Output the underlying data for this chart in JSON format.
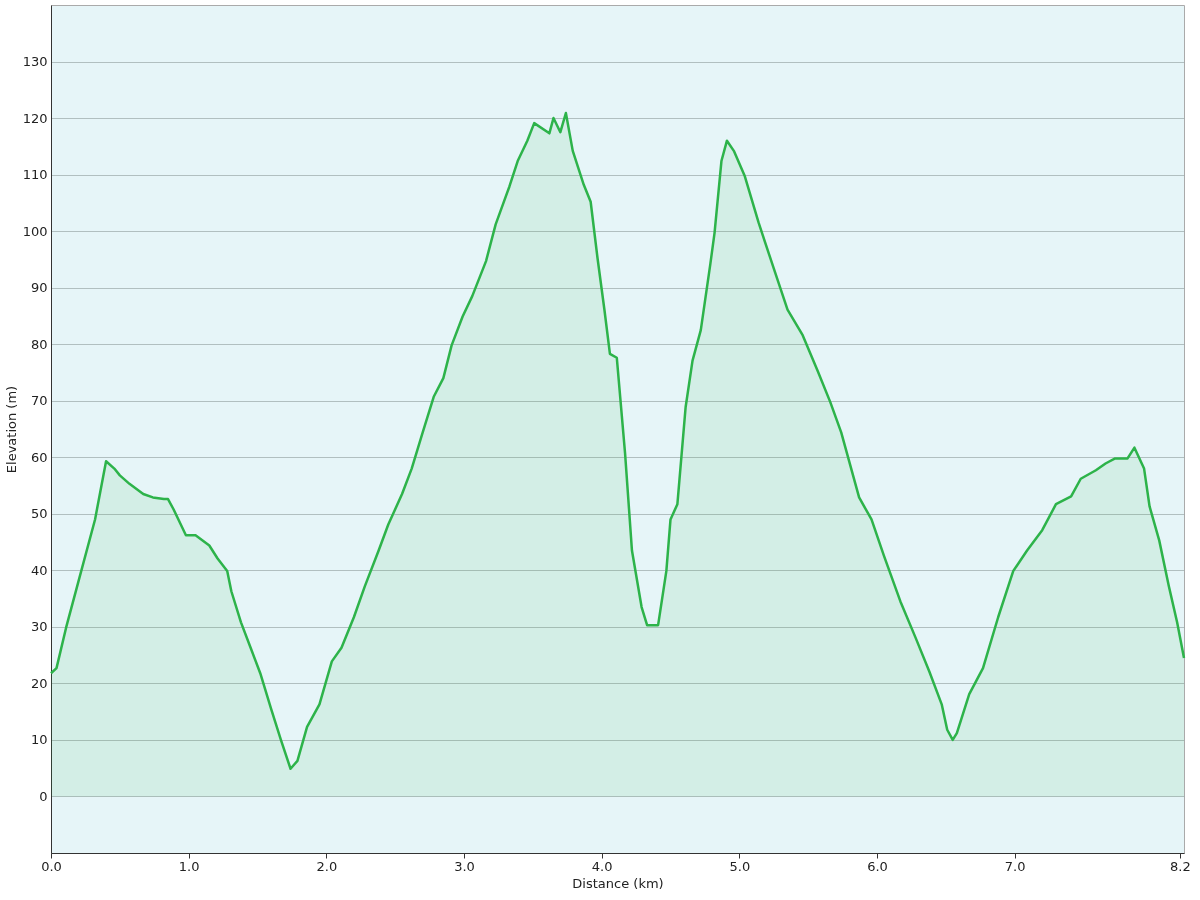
{
  "chart_data": {
    "type": "area",
    "xlabel": "Distance  (km)",
    "ylabel": "Elevation (m)",
    "xlim": [
      0,
      8.23
    ],
    "ylim": [
      -10,
      140
    ],
    "xticks": [
      {
        "value": 0,
        "label": "0.0"
      },
      {
        "value": 1,
        "label": "1.0"
      },
      {
        "value": 2,
        "label": "2.0"
      },
      {
        "value": 3,
        "label": "3.0"
      },
      {
        "value": 4,
        "label": "4.0"
      },
      {
        "value": 5,
        "label": "5.0"
      },
      {
        "value": 6,
        "label": "6.0"
      },
      {
        "value": 7,
        "label": "7.0"
      },
      {
        "value": 8.2,
        "label": "8.2"
      }
    ],
    "yticks": [
      0,
      10,
      20,
      30,
      40,
      50,
      60,
      70,
      80,
      90,
      100,
      110,
      120,
      130
    ],
    "grid": "y",
    "series": [
      {
        "color": "#2db34a",
        "x": [
          0.0,
          0.04,
          0.11,
          0.2,
          0.32,
          0.4,
          0.46,
          0.5,
          0.57,
          0.67,
          0.74,
          0.82,
          0.85,
          0.89,
          0.98,
          1.05,
          1.15,
          1.21,
          1.28,
          1.31,
          1.38,
          1.45,
          1.52,
          1.6,
          1.67,
          1.74,
          1.79,
          1.86,
          1.95,
          2.04,
          2.11,
          2.2,
          2.28,
          2.38,
          2.45,
          2.55,
          2.62,
          2.7,
          2.78,
          2.85,
          2.91,
          2.99,
          3.06,
          3.16,
          3.23,
          3.33,
          3.39,
          3.46,
          3.51,
          3.62,
          3.65,
          3.7,
          3.74,
          3.79,
          3.87,
          3.92,
          3.97,
          4.02,
          4.06,
          4.11,
          4.17,
          4.22,
          4.29,
          4.33,
          4.41,
          4.47,
          4.5,
          4.55,
          4.61,
          4.66,
          4.72,
          4.79,
          4.82,
          4.87,
          4.91,
          4.96,
          5.04,
          5.14,
          5.25,
          5.35,
          5.46,
          5.57,
          5.66,
          5.74,
          5.87,
          5.96,
          6.05,
          6.17,
          6.28,
          6.38,
          6.47,
          6.51,
          6.55,
          6.58,
          6.67,
          6.77,
          6.88,
          6.99,
          7.09,
          7.2,
          7.3,
          7.41,
          7.48,
          7.59,
          7.66,
          7.73,
          7.82,
          7.87,
          7.94,
          7.98,
          8.05,
          8.12,
          8.18,
          8.23
        ],
        "values": [
          21.8,
          22.7,
          29.9,
          38.1,
          49.0,
          59.3,
          58.0,
          56.8,
          55.3,
          53.5,
          52.9,
          52.6,
          52.6,
          50.8,
          46.2,
          46.2,
          44.4,
          42.1,
          39.9,
          36.3,
          30.8,
          26.3,
          21.8,
          15.4,
          10.0,
          4.9,
          6.3,
          12.3,
          16.3,
          23.9,
          26.3,
          31.7,
          37.2,
          43.5,
          48.1,
          53.5,
          58.0,
          64.4,
          70.7,
          74.0,
          79.8,
          84.9,
          88.5,
          94.7,
          101.2,
          107.9,
          112.4,
          116.0,
          119.1,
          117.3,
          120.0,
          117.5,
          120.9,
          114.2,
          108.2,
          105.2,
          95.2,
          86.1,
          78.3,
          77.6,
          60.7,
          43.5,
          33.5,
          30.3,
          30.3,
          39.9,
          49.0,
          51.7,
          68.9,
          77.1,
          82.5,
          94.3,
          99.7,
          112.4,
          116.0,
          114.2,
          109.7,
          101.5,
          93.4,
          86.1,
          81.6,
          75.2,
          69.8,
          64.4,
          52.9,
          49.0,
          42.6,
          34.5,
          28.1,
          22.1,
          16.3,
          11.8,
          10.0,
          11.2,
          18.1,
          22.7,
          31.7,
          39.9,
          43.5,
          47.1,
          51.7,
          53.1,
          56.2,
          57.7,
          58.9,
          59.8,
          59.8,
          61.7,
          58.0,
          51.3,
          45.3,
          37.2,
          30.8,
          24.5
        ]
      }
    ]
  }
}
